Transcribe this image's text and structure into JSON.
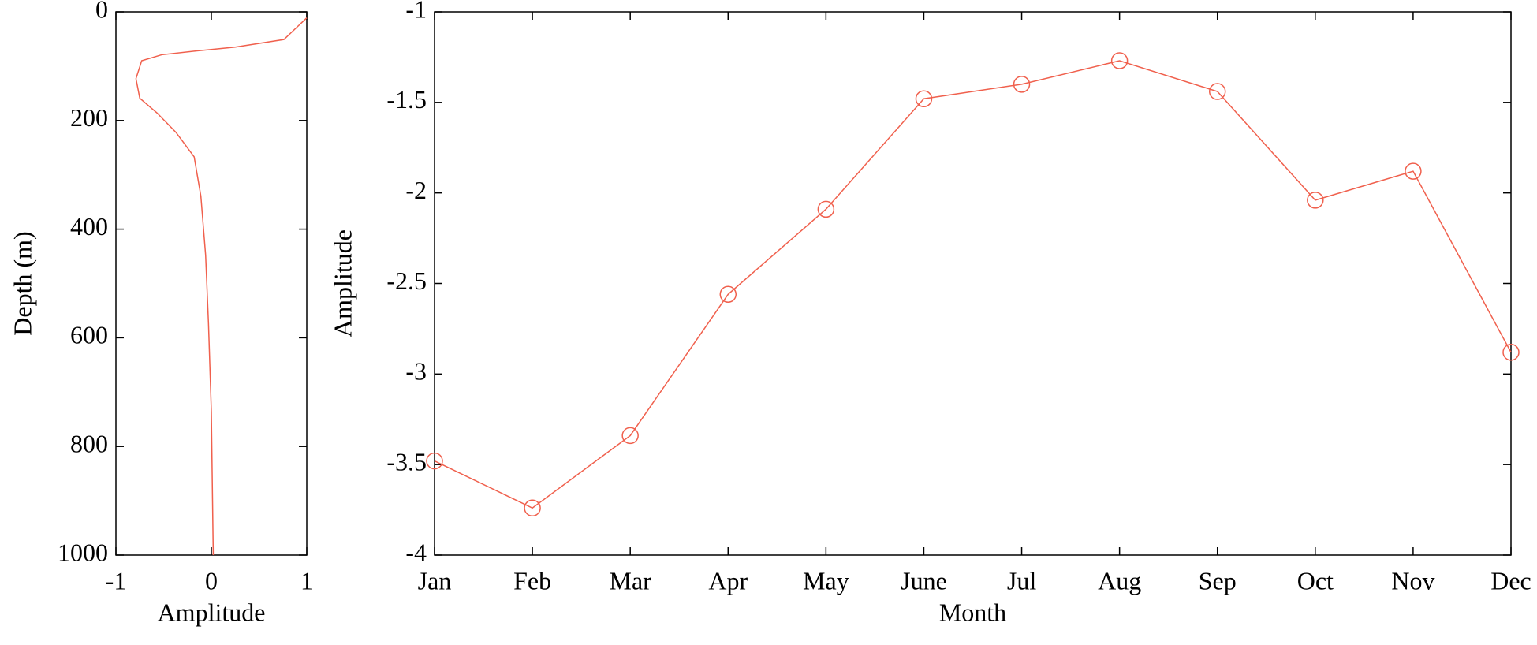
{
  "chart_data": [
    {
      "type": "profile",
      "xlabel": "Amplitude",
      "ylabel": "Depth (m)",
      "x": [
        1,
        0.76,
        0.25,
        -0.16,
        -0.52,
        -0.73,
        -0.79,
        -0.75,
        -0.57,
        -0.37,
        -0.18,
        -0.11,
        -0.06,
        -0.03,
        0,
        0.02
      ],
      "values": [
        11,
        51,
        65,
        72,
        79,
        90,
        123,
        159,
        186,
        222,
        267,
        339,
        448,
        574,
        736,
        1000
      ],
      "color": "#f0604d",
      "xlim": [
        -1,
        1
      ],
      "xticks": [
        -1,
        0,
        1
      ],
      "ylim": [
        0,
        1000
      ],
      "yticks": [
        0,
        200,
        400,
        600,
        800,
        1000
      ],
      "y_reversed": true
    },
    {
      "type": "line",
      "xlabel": "Month",
      "ylabel": "Amplitude",
      "categories": [
        "Jan",
        "Feb",
        "Mar",
        "Apr",
        "May",
        "June",
        "Jul",
        "Aug",
        "Sep",
        "Oct",
        "Nov",
        "Dec"
      ],
      "values": [
        -3.48,
        -3.74,
        -3.34,
        -2.56,
        -2.09,
        -1.48,
        -1.4,
        -1.27,
        -1.44,
        -2.04,
        -1.88,
        -2.88
      ],
      "color": "#f0604d",
      "marker": "circle",
      "ylim": [
        -4,
        -1
      ],
      "yticks": [
        -4,
        -3.5,
        -3,
        -2.5,
        -2,
        -1.5,
        -1
      ]
    }
  ]
}
